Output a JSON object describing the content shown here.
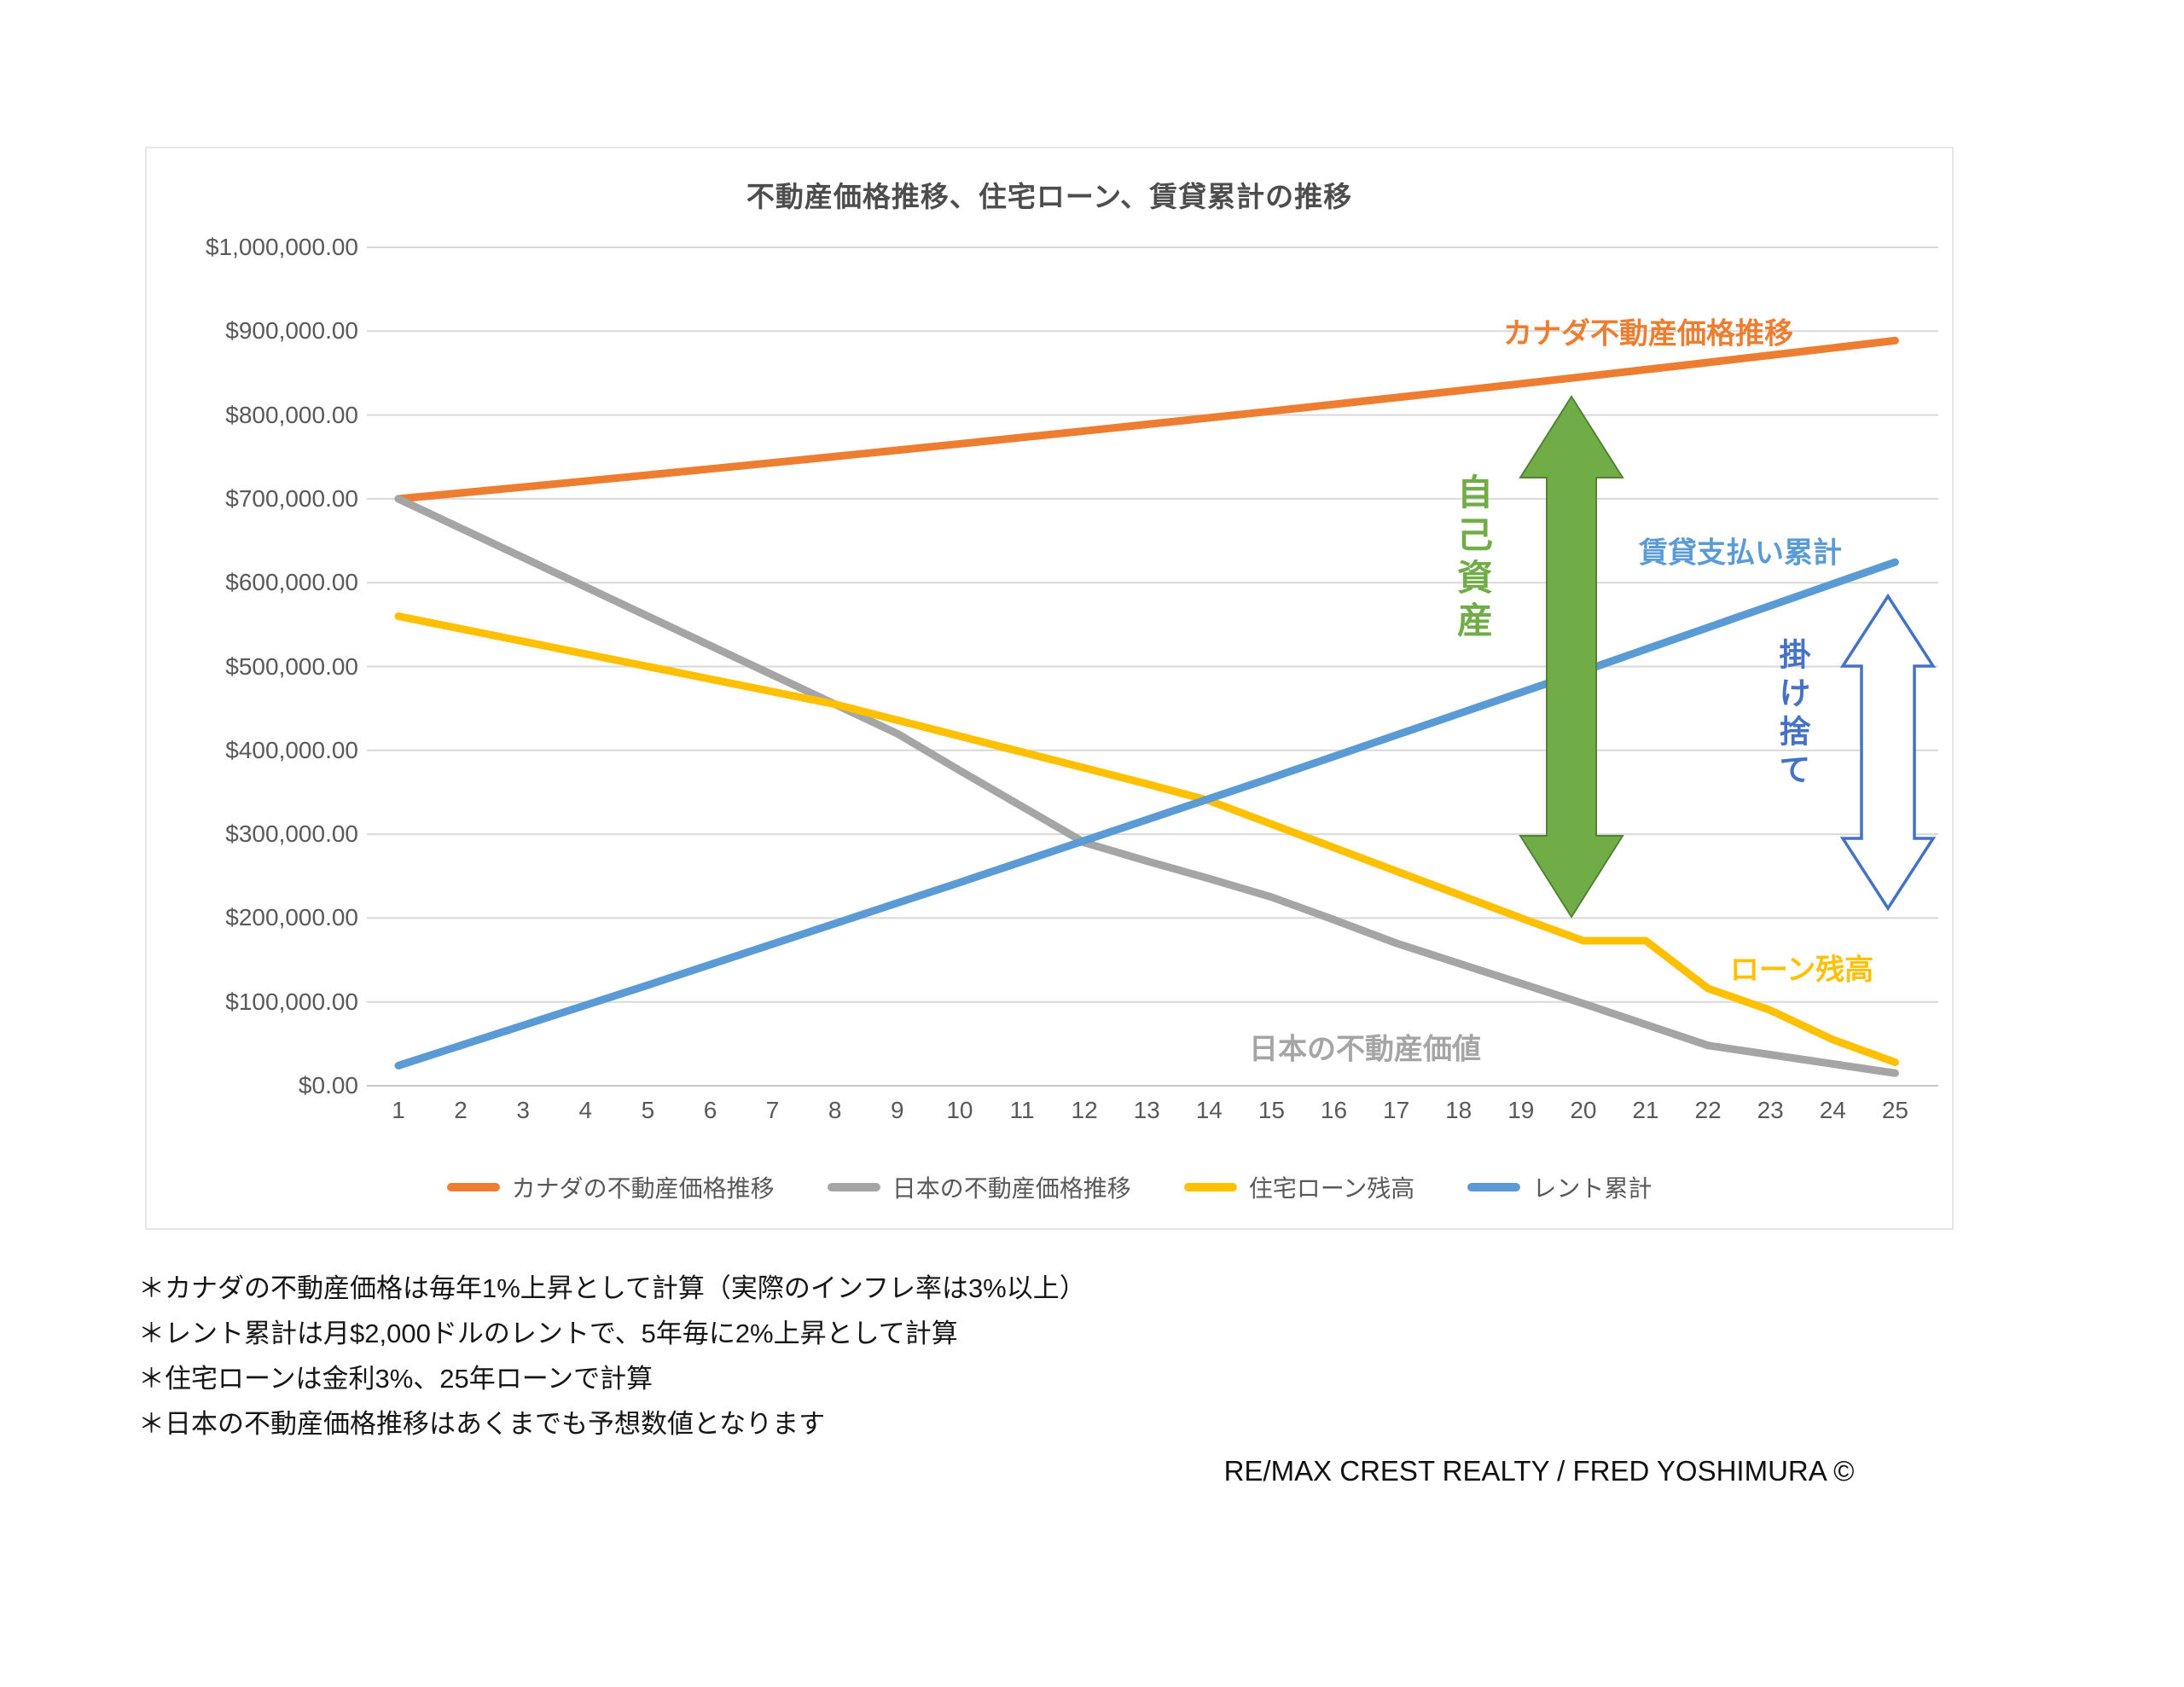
{
  "chart_data": {
    "type": "line",
    "title": "不動産価格推移、住宅ローン、賃貸累計の推移",
    "xlabel": "",
    "ylabel": "",
    "x": [
      1,
      2,
      3,
      4,
      5,
      6,
      7,
      8,
      9,
      10,
      11,
      12,
      13,
      14,
      15,
      16,
      17,
      18,
      19,
      20,
      21,
      22,
      23,
      24,
      25
    ],
    "y_axis": {
      "min": 0,
      "max": 1000000,
      "step": 100000,
      "ticks": [
        {
          "label": "$0.00",
          "value": 0
        },
        {
          "label": "$100,000.00",
          "value": 100000
        },
        {
          "label": "$200,000.00",
          "value": 200000
        },
        {
          "label": "$300,000.00",
          "value": 300000
        },
        {
          "label": "$400,000.00",
          "value": 400000
        },
        {
          "label": "$500,000.00",
          "value": 500000
        },
        {
          "label": "$600,000.00",
          "value": 600000
        },
        {
          "label": "$700,000.00",
          "value": 700000
        },
        {
          "label": "$800,000.00",
          "value": 800000
        },
        {
          "label": "$900,000.00",
          "value": 900000
        },
        {
          "label": "$1,000,000.00",
          "value": 1000000
        }
      ]
    },
    "grid": true,
    "legend_position": "bottom",
    "series": [
      {
        "name": "カナダの不動産価格推移",
        "color": "#ED7D31",
        "values": [
          700000,
          707000,
          714070,
          721211,
          728423,
          735707,
          743064,
          750495,
          758000,
          765580,
          773236,
          780968,
          788778,
          796665,
          804632,
          812678,
          820805,
          829013,
          837303,
          845676,
          854133,
          862674,
          871301,
          880014,
          888814
        ]
      },
      {
        "name": "日本の不動産価格推移",
        "color": "#A5A5A5",
        "values": [
          700000,
          665000,
          630000,
          595000,
          560000,
          525000,
          490000,
          455000,
          420000,
          376000,
          333000,
          290000,
          268000,
          247000,
          225000,
          198000,
          170000,
          146000,
          122000,
          98000,
          73000,
          48000,
          37000,
          26000,
          15000
        ]
      },
      {
        "name": "住宅ローン残高",
        "color": "#FFC000",
        "values": [
          560000,
          545000,
          530000,
          515000,
          500000,
          485000,
          470000,
          455000,
          436000,
          417000,
          398000,
          379000,
          360000,
          340000,
          312000,
          284000,
          256000,
          228000,
          200000,
          173000,
          173000,
          116000,
          90000,
          55000,
          28000
        ]
      },
      {
        "name": "レント累計",
        "color": "#5B9BD5",
        "values": [
          24000,
          48000,
          72000,
          96000,
          120000,
          144480,
          168960,
          193440,
          217920,
          242400,
          267370,
          292340,
          317310,
          342280,
          367250,
          392720,
          418190,
          443660,
          469120,
          494590,
          520570,
          546550,
          572530,
          598510,
          624490
        ]
      }
    ]
  },
  "annotations": {
    "canada_label": {
      "text": "カナダ不動産価格推移",
      "color": "#ED7D31"
    },
    "rent_label": {
      "text": "賃貸支払い累計",
      "color": "#5B9BD5"
    },
    "equity_label": {
      "text": "自己資産",
      "color": "#70AD47"
    },
    "kakesute_label": {
      "text": "掛け捨て",
      "color": "#4472C4"
    },
    "mortgage_label": {
      "text": "ローン残高",
      "color": "#FFC000"
    },
    "japan_label": {
      "text": "日本の不動産価値",
      "color": "#A5A5A5"
    },
    "equity_arrow": {
      "fill": "#70AD47",
      "stroke": "#548235"
    },
    "kakesute_arrow": {
      "fill": "#FFFFFF",
      "stroke": "#4472C4"
    }
  },
  "footnotes": {
    "lines": [
      "＊カナダの不動産価格は毎年1%上昇として計算（実際のインフレ率は3%以上）",
      "＊レント累計は月$2,000ドルのレントで、5年毎に2%上昇として計算",
      "＊住宅ローンは金利3%、25年ローンで計算",
      "＊日本の不動産価格推移はあくまでも予想数値となります"
    ]
  },
  "attribution": "RE/MAX CREST REALTY / FRED YOSHIMURA ©"
}
